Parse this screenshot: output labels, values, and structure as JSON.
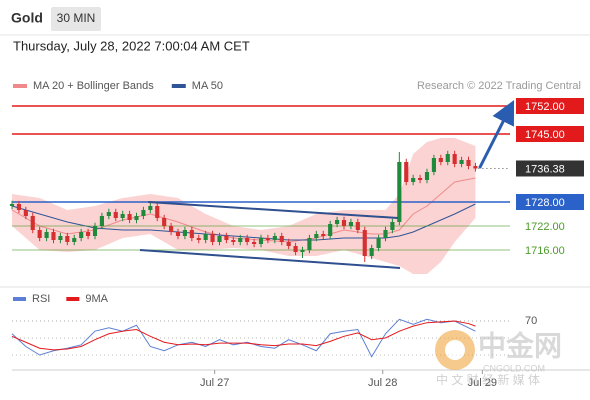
{
  "header": {
    "symbol": "Gold",
    "interval": "30 MIN",
    "datetime": "Thursday, July 28, 2022 7:00:04 AM CET"
  },
  "watermark": {
    "brand": "中金网",
    "domain": "CNGOLD.COM",
    "tagline": "中 文 财 经 新 媒 体"
  },
  "chart_data": [
    {
      "type": "candlestick",
      "credit": "Research © 2022 Trading Central",
      "xlim": [
        0,
        72
      ],
      "ylim": [
        1707,
        1755
      ],
      "up_color": "#1f8a3c",
      "down_color": "#d62f2f",
      "open": [
        1727.0,
        1727.5,
        1726.0,
        1724.5,
        1721.0,
        1719.0,
        1720.5,
        1718.5,
        1719.5,
        1718.0,
        1719.0,
        1720.5,
        1719.5,
        1722.0,
        1724.5,
        1725.5,
        1724.0,
        1725.0,
        1723.5,
        1724.5,
        1726.0,
        1727.0,
        1724.0,
        1722.0,
        1720.5,
        1719.5,
        1721.0,
        1719.0,
        1718.5,
        1720.0,
        1718.0,
        1719.5,
        1718.5,
        1718.0,
        1719.0,
        1718.0,
        1717.5,
        1719.0,
        1718.5,
        1719.5,
        1718.0,
        1717.0,
        1715.5,
        1716.0,
        1719.0,
        1720.0,
        1719.5,
        1722.5,
        1723.5,
        1722.0,
        1723.0,
        1721.0,
        1714.5,
        1716.5,
        1719.0,
        1721.0,
        1723.0,
        1738.0,
        1733.0,
        1734.0,
        1733.5,
        1735.5,
        1739.0,
        1738.0,
        1740.0,
        1737.5,
        1738.5,
        1737.0
      ],
      "high": [
        1728.3,
        1728.3,
        1726.8,
        1725.3,
        1721.8,
        1721.3,
        1721.3,
        1720.3,
        1720.3,
        1719.8,
        1721.3,
        1721.3,
        1722.8,
        1725.3,
        1726.3,
        1726.3,
        1725.8,
        1725.8,
        1725.3,
        1726.8,
        1728.0,
        1727.8,
        1724.8,
        1722.8,
        1721.3,
        1721.8,
        1721.8,
        1719.8,
        1720.8,
        1720.8,
        1720.3,
        1720.3,
        1719.3,
        1719.8,
        1719.8,
        1718.8,
        1719.8,
        1719.8,
        1720.3,
        1720.3,
        1718.8,
        1717.8,
        1716.8,
        1719.8,
        1720.8,
        1720.8,
        1723.3,
        1724.3,
        1724.3,
        1723.8,
        1723.8,
        1721.8,
        1717.3,
        1719.8,
        1721.8,
        1723.8,
        1740.5,
        1738.8,
        1734.8,
        1734.8,
        1736.3,
        1739.8,
        1739.8,
        1740.8,
        1740.8,
        1739.3,
        1739.3,
        1737.8
      ],
      "low": [
        1726.2,
        1725.2,
        1723.7,
        1720.2,
        1718.2,
        1718.2,
        1717.7,
        1717.7,
        1717.2,
        1717.2,
        1718.2,
        1718.7,
        1718.7,
        1721.2,
        1723.7,
        1723.2,
        1723.2,
        1722.7,
        1722.7,
        1723.7,
        1725.2,
        1723.2,
        1721.2,
        1719.7,
        1718.7,
        1718.7,
        1718.2,
        1717.7,
        1717.7,
        1717.2,
        1717.2,
        1717.7,
        1717.2,
        1717.2,
        1717.2,
        1716.7,
        1716.7,
        1717.7,
        1717.7,
        1717.2,
        1716.2,
        1714.7,
        1714.0,
        1715.2,
        1718.2,
        1718.7,
        1718.7,
        1721.7,
        1721.2,
        1721.2,
        1720.2,
        1713.0,
        1713.7,
        1715.7,
        1718.2,
        1720.2,
        1722.2,
        1732.2,
        1732.2,
        1732.7,
        1732.7,
        1734.7,
        1737.2,
        1737.2,
        1736.7,
        1736.7,
        1736.2,
        1735.6
      ],
      "close": [
        1727.5,
        1726.0,
        1724.5,
        1721.0,
        1719.0,
        1720.5,
        1718.5,
        1719.5,
        1718.0,
        1719.0,
        1720.5,
        1719.5,
        1722.0,
        1724.5,
        1725.5,
        1724.0,
        1725.0,
        1723.5,
        1724.5,
        1726.0,
        1727.0,
        1724.0,
        1722.0,
        1720.5,
        1719.5,
        1721.0,
        1719.0,
        1718.5,
        1720.0,
        1718.0,
        1719.5,
        1718.5,
        1718.0,
        1719.0,
        1718.0,
        1717.5,
        1719.0,
        1718.5,
        1719.5,
        1718.0,
        1717.0,
        1715.5,
        1716.0,
        1719.0,
        1720.0,
        1719.5,
        1722.5,
        1723.5,
        1722.0,
        1723.0,
        1721.0,
        1714.5,
        1716.5,
        1719.0,
        1721.0,
        1723.0,
        1738.0,
        1733.0,
        1734.0,
        1733.5,
        1735.5,
        1739.0,
        1738.0,
        1740.0,
        1737.5,
        1738.5,
        1737.0,
        1736.38
      ],
      "series": [
        {
          "name": "MA 20 + Bollinger Bands",
          "color": "#f08a8a",
          "band_color": "#fbd3d3",
          "x": [
            0,
            4,
            8,
            12,
            16,
            20,
            24,
            28,
            32,
            36,
            40,
            44,
            48,
            52,
            54,
            56,
            58,
            60,
            62,
            64,
            67
          ],
          "values": [
            1726,
            1722,
            1720,
            1721,
            1723.5,
            1725,
            1723,
            1720.5,
            1719,
            1718.5,
            1718,
            1719,
            1721,
            1720,
            1720,
            1721,
            1725,
            1727,
            1730,
            1733,
            1734
          ],
          "upper": [
            1730,
            1729,
            1726,
            1727,
            1729,
            1730,
            1729,
            1725,
            1722,
            1721,
            1722,
            1725,
            1726,
            1726,
            1726,
            1730,
            1740,
            1743,
            1744,
            1744,
            1742
          ],
          "lower": [
            1722,
            1716,
            1715.5,
            1716,
            1719,
            1720,
            1716,
            1716,
            1716.5,
            1716,
            1714.5,
            1714.5,
            1716,
            1714,
            1713,
            1712,
            1710,
            1710,
            1713,
            1718,
            1724
          ]
        },
        {
          "name": "MA 50",
          "color": "#2f5597",
          "x": [
            0,
            4,
            8,
            12,
            16,
            20,
            24,
            28,
            32,
            36,
            40,
            44,
            48,
            52,
            54,
            56,
            58,
            60,
            62,
            64,
            67
          ],
          "values": [
            1727,
            1725,
            1723,
            1721.5,
            1721,
            1721,
            1720.5,
            1720,
            1719.5,
            1719,
            1718.5,
            1718.5,
            1719,
            1719,
            1719,
            1719.5,
            1720.5,
            1722,
            1723.5,
            1725,
            1727.5
          ]
        }
      ],
      "levels": [
        {
          "value": 1752,
          "label": "1752.00",
          "color": "#e31a1c",
          "style": "box"
        },
        {
          "value": 1745,
          "label": "1745.00",
          "color": "#e31a1c",
          "style": "box"
        },
        {
          "value": 1728,
          "label": "1728.00",
          "color": "#2a62c9",
          "style": "box"
        },
        {
          "value": 1722,
          "label": "1722.00",
          "color": "#4c9a2a",
          "style": "text"
        },
        {
          "value": 1716,
          "label": "1716.00",
          "color": "#4c9a2a",
          "style": "text"
        }
      ],
      "last_color": "#333333",
      "trendlines": [
        {
          "x": [
            19.7,
            55.8
          ],
          "values": [
            1728,
            1724
          ],
          "color": "#2f4f8f"
        },
        {
          "x": [
            18.5,
            56.1
          ],
          "values": [
            1716,
            1711.5
          ],
          "color": "#2f4f8f"
        }
      ],
      "arrow": {
        "x": [
          67.6,
          72
        ],
        "values": [
          1736.5,
          1751.5
        ],
        "color": "#2a5db0"
      }
    },
    {
      "type": "line",
      "xlim": [
        0,
        72
      ],
      "ylim": [
        10,
        90
      ],
      "yticks": [
        70
      ],
      "guides": [
        30,
        50
      ],
      "xticks": [
        {
          "value": 29.3,
          "label": "Jul 27"
        },
        {
          "value": 53.6,
          "label": "Jul 28"
        },
        {
          "value": 68,
          "label": "Jul 29"
        }
      ],
      "series": [
        {
          "name": "RSI",
          "color": "#5b7fd6",
          "x": [
            0,
            2,
            4,
            6,
            8,
            10,
            12,
            14,
            16,
            18,
            20,
            22,
            24,
            26,
            28,
            30,
            32,
            34,
            36,
            38,
            40,
            42,
            44,
            46,
            48,
            50,
            52,
            54,
            56,
            58,
            60,
            62,
            64,
            66,
            67
          ],
          "values": [
            55,
            40,
            30,
            35,
            38,
            42,
            58,
            62,
            58,
            65,
            40,
            35,
            42,
            45,
            40,
            48,
            42,
            45,
            40,
            38,
            48,
            42,
            35,
            55,
            58,
            60,
            28,
            55,
            72,
            66,
            72,
            68,
            70,
            62,
            58
          ]
        },
        {
          "name": "9MA",
          "color": "#e31a1c",
          "x": [
            0,
            2,
            4,
            6,
            8,
            10,
            12,
            14,
            16,
            18,
            20,
            22,
            24,
            26,
            28,
            30,
            32,
            34,
            36,
            38,
            40,
            42,
            44,
            46,
            48,
            50,
            52,
            54,
            56,
            58,
            60,
            62,
            64,
            66,
            67
          ],
          "values": [
            52,
            45,
            38,
            36,
            37,
            40,
            48,
            55,
            58,
            60,
            52,
            45,
            42,
            43,
            42,
            44,
            44,
            44,
            42,
            41,
            43,
            43,
            41,
            46,
            52,
            56,
            48,
            50,
            58,
            64,
            68,
            69,
            70,
            67,
            64
          ]
        }
      ]
    }
  ]
}
